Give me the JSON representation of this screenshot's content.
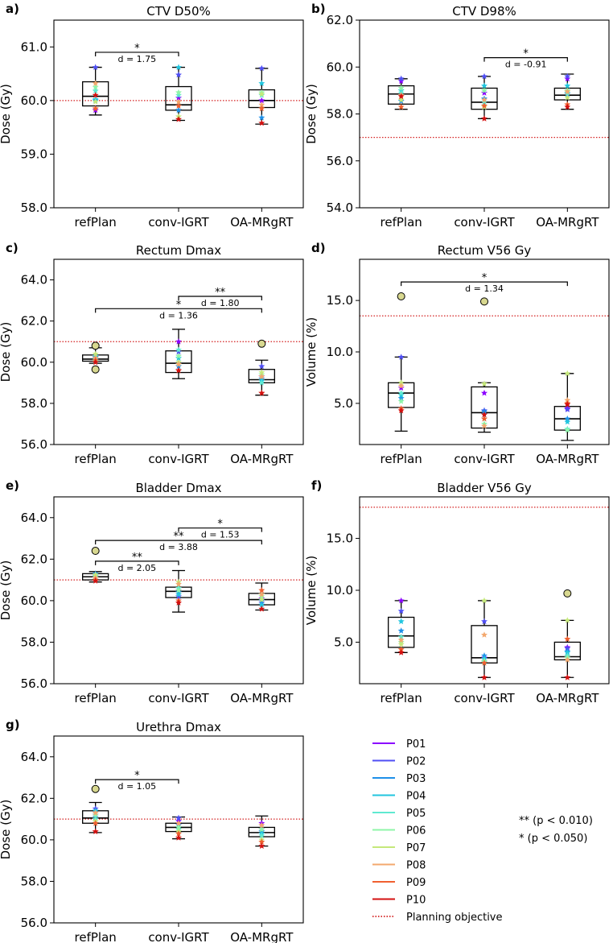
{
  "chart_data": [
    {
      "panel": "a)",
      "type": "box",
      "title": "CTV D50%",
      "ylabel": "Dose (Gy)",
      "ylim": [
        58.0,
        61.5
      ],
      "yticks": [
        58.0,
        59.0,
        60.0,
        61.0
      ],
      "ytick_labels": [
        "58.0",
        "59.0",
        "60.0",
        "61.0"
      ],
      "categories": [
        "refPlan",
        "conv-IGRT",
        "OA-MRgRT"
      ],
      "objective": 60.0,
      "boxes": [
        {
          "whislo": 59.73,
          "q1": 59.9,
          "med": 60.08,
          "q3": 60.35,
          "whishi": 60.62,
          "fliers": [],
          "points": [
            59.82,
            60.62,
            60.0,
            60.02,
            60.18,
            60.25,
            59.98,
            60.32,
            59.85,
            60.1
          ]
        },
        {
          "whislo": 59.63,
          "q1": 59.82,
          "med": 59.92,
          "q3": 60.26,
          "whishi": 60.62,
          "fliers": [],
          "points": [
            60.05,
            60.48,
            59.82,
            60.62,
            60.1,
            60.15,
            59.7,
            59.98,
            59.9,
            59.65
          ]
        },
        {
          "whislo": 59.56,
          "q1": 59.87,
          "med": 60.0,
          "q3": 60.2,
          "whishi": 60.6,
          "fliers": [],
          "points": [
            60.0,
            60.6,
            59.68,
            60.32,
            60.1,
            60.15,
            60.12,
            59.92,
            59.85,
            59.58
          ]
        }
      ],
      "sig": [
        {
          "from": 0,
          "to": 1,
          "level": 60.9,
          "stars": "*",
          "d": "d = 1.75"
        }
      ]
    },
    {
      "panel": "b)",
      "type": "box",
      "title": "CTV D98%",
      "ylabel": "Dose (Gy)",
      "ylim": [
        54.0,
        62.0
      ],
      "yticks": [
        54.0,
        56.0,
        58.0,
        60.0,
        62.0
      ],
      "ytick_labels": [
        "54.0",
        "56.0",
        "58.0",
        "60.0",
        "62.0"
      ],
      "categories": [
        "refPlan",
        "conv-IGRT",
        "OA-MRgRT"
      ],
      "objective": 57.0,
      "boxes": [
        {
          "whislo": 58.2,
          "q1": 58.42,
          "med": 58.85,
          "q3": 59.2,
          "whishi": 59.5,
          "fliers": [],
          "points": [
            59.4,
            59.5,
            58.55,
            59.0,
            58.9,
            59.1,
            58.6,
            58.8,
            58.3,
            58.75
          ]
        },
        {
          "whislo": 57.8,
          "q1": 58.2,
          "med": 58.5,
          "q3": 59.1,
          "whishi": 59.6,
          "fliers": [],
          "points": [
            58.9,
            59.6,
            58.65,
            59.2,
            58.5,
            59.0,
            58.3,
            58.6,
            58.35,
            57.8
          ]
        },
        {
          "whislo": 58.2,
          "q1": 58.6,
          "med": 58.8,
          "q3": 59.1,
          "whishi": 59.7,
          "fliers": [],
          "points": [
            59.5,
            59.6,
            58.85,
            59.2,
            58.9,
            59.0,
            58.7,
            58.95,
            58.4,
            58.3
          ]
        }
      ],
      "sig": [
        {
          "from": 1,
          "to": 2,
          "level": 60.4,
          "stars": "*",
          "d": "d = -0.91"
        }
      ]
    },
    {
      "panel": "c)",
      "type": "box",
      "title": "Rectum Dmax",
      "ylabel": "Dose (Gy)",
      "ylim": [
        56.0,
        65.0
      ],
      "yticks": [
        56.0,
        58.0,
        60.0,
        62.0,
        64.0
      ],
      "ytick_labels": [
        "56.0",
        "58.0",
        "60.0",
        "62.0",
        "64.0"
      ],
      "categories": [
        "refPlan",
        "conv-IGRT",
        "OA-MRgRT"
      ],
      "objective": 61.0,
      "boxes": [
        {
          "whislo": 59.95,
          "q1": 60.05,
          "med": 60.15,
          "q3": 60.35,
          "whishi": 60.7,
          "fliers": [
            60.8,
            59.65
          ],
          "points": [
            60.2,
            60.1,
            60.25,
            60.3,
            60.15,
            60.05,
            60.4,
            60.2,
            60.1,
            60.0
          ]
        },
        {
          "whislo": 59.2,
          "q1": 59.5,
          "med": 59.95,
          "q3": 60.55,
          "whishi": 61.6,
          "fliers": [],
          "points": [
            61.0,
            60.5,
            59.8,
            60.2,
            60.6,
            60.3,
            60.0,
            59.9,
            59.6,
            59.6
          ]
        },
        {
          "whislo": 58.4,
          "q1": 59.0,
          "med": 59.15,
          "q3": 59.65,
          "whishi": 60.1,
          "fliers": [
            60.9
          ],
          "points": [
            59.3,
            59.8,
            59.2,
            59.1,
            59.0,
            59.4,
            59.5,
            59.3,
            58.5,
            58.5
          ]
        }
      ],
      "sig": [
        {
          "from": 1,
          "to": 2,
          "level": 63.2,
          "stars": "**",
          "d": "d = 1.80"
        },
        {
          "from": 0,
          "to": 2,
          "level": 62.6,
          "stars": "*",
          "d": "d = 1.36"
        }
      ]
    },
    {
      "panel": "d)",
      "type": "box",
      "title": "Rectum V56 Gy",
      "ylabel": "Volume (%)",
      "ylim": [
        1.0,
        19.0
      ],
      "yticks": [
        5.0,
        10.0,
        15.0
      ],
      "ytick_labels": [
        "5.0",
        "10.0",
        "15.0"
      ],
      "categories": [
        "refPlan",
        "conv-IGRT",
        "OA-MRgRT"
      ],
      "objective": 13.5,
      "boxes": [
        {
          "whislo": 2.3,
          "q1": 4.6,
          "med": 6.0,
          "q3": 7.0,
          "whishi": 9.5,
          "fliers": [
            15.4
          ],
          "points": [
            6.5,
            9.5,
            5.5,
            5.8,
            6.0,
            5.2,
            7.0,
            6.7,
            4.5,
            4.3
          ]
        },
        {
          "whislo": 2.2,
          "q1": 2.6,
          "med": 4.1,
          "q3": 6.6,
          "whishi": 7.0,
          "fliers": [
            14.9
          ],
          "points": [
            6.0,
            4.3,
            4.2,
            3.9,
            3.5,
            3.0,
            6.9,
            2.8,
            3.5,
            3.9
          ]
        },
        {
          "whislo": 1.4,
          "q1": 2.4,
          "med": 3.5,
          "q3": 4.7,
          "whishi": 7.9,
          "fliers": [],
          "points": [
            4.5,
            4.4,
            3.5,
            3.2,
            2.5,
            2.4,
            7.9,
            5.3,
            5.0,
            4.9
          ]
        }
      ],
      "sig": [
        {
          "from": 0,
          "to": 2,
          "level": 16.8,
          "stars": "*",
          "d": "d = 1.34"
        }
      ]
    },
    {
      "panel": "e)",
      "type": "box",
      "title": "Bladder Dmax",
      "ylabel": "Dose (Gy)",
      "ylim": [
        56.0,
        65.0
      ],
      "yticks": [
        56.0,
        58.0,
        60.0,
        62.0,
        64.0
      ],
      "ytick_labels": [
        "56.0",
        "58.0",
        "60.0",
        "62.0",
        "64.0"
      ],
      "categories": [
        "refPlan",
        "conv-IGRT",
        "OA-MRgRT"
      ],
      "objective": 61.0,
      "boxes": [
        {
          "whislo": 60.9,
          "q1": 61.0,
          "med": 61.15,
          "q3": 61.3,
          "whishi": 61.4,
          "fliers": [
            62.4
          ],
          "points": [
            61.2,
            61.1,
            61.3,
            61.0,
            61.15,
            61.2,
            61.25,
            61.1,
            61.0,
            60.95
          ]
        },
        {
          "whislo": 59.45,
          "q1": 60.15,
          "med": 60.45,
          "q3": 60.65,
          "whishi": 61.45,
          "fliers": [],
          "points": [
            60.5,
            60.2,
            60.4,
            60.3,
            60.6,
            60.5,
            60.9,
            60.8,
            60.0,
            59.9
          ]
        },
        {
          "whislo": 59.55,
          "q1": 59.8,
          "med": 60.05,
          "q3": 60.35,
          "whishi": 60.85,
          "fliers": [],
          "points": [
            60.1,
            59.9,
            60.0,
            59.8,
            60.3,
            60.2,
            60.05,
            60.3,
            60.5,
            59.6
          ]
        }
      ],
      "sig": [
        {
          "from": 1,
          "to": 2,
          "level": 63.5,
          "stars": "*",
          "d": "d = 1.53"
        },
        {
          "from": 0,
          "to": 2,
          "level": 62.9,
          "stars": "**",
          "d": "d = 3.88"
        },
        {
          "from": 0,
          "to": 1,
          "level": 61.9,
          "stars": "**",
          "d": "d = 2.05"
        }
      ]
    },
    {
      "panel": "f)",
      "type": "box",
      "title": "Bladder V56 Gy",
      "ylabel": "Volume (%)",
      "ylim": [
        1.0,
        19.0
      ],
      "yticks": [
        5.0,
        10.0,
        15.0
      ],
      "ytick_labels": [
        "5.0",
        "10.0",
        "15.0"
      ],
      "categories": [
        "refPlan",
        "conv-IGRT",
        "OA-MRgRT"
      ],
      "objective": 18.0,
      "boxes": [
        {
          "whislo": 4.0,
          "q1": 4.5,
          "med": 5.6,
          "q3": 7.4,
          "whishi": 9.0,
          "fliers": [],
          "points": [
            9.0,
            8.0,
            6.1,
            7.0,
            5.5,
            5.0,
            4.8,
            5.2,
            4.3,
            4.0
          ]
        },
        {
          "whislo": 1.6,
          "q1": 3.0,
          "med": 3.5,
          "q3": 6.6,
          "whishi": 9.0,
          "fliers": [],
          "points": [
            3.5,
            7.0,
            3.7,
            3.4,
            3.1,
            3.2,
            9.0,
            5.7,
            3.0,
            1.6
          ]
        },
        {
          "whislo": 1.6,
          "q1": 3.3,
          "med": 3.6,
          "q3": 5.0,
          "whishi": 7.1,
          "fliers": [
            9.7
          ],
          "points": [
            4.5,
            4.4,
            4.1,
            4.0,
            3.7,
            3.5,
            7.1,
            3.3,
            5.3,
            1.6
          ]
        }
      ],
      "sig": []
    },
    {
      "panel": "g)",
      "type": "box",
      "title": "Urethra Dmax",
      "ylabel": "Dose (Gy)",
      "ylim": [
        56.0,
        65.0
      ],
      "yticks": [
        56.0,
        58.0,
        60.0,
        62.0,
        64.0
      ],
      "ytick_labels": [
        "56.0",
        "58.0",
        "60.0",
        "62.0",
        "64.0"
      ],
      "categories": [
        "refPlan",
        "conv-IGRT",
        "OA-MRgRT"
      ],
      "objective": 61.0,
      "boxes": [
        {
          "whislo": 60.35,
          "q1": 60.8,
          "med": 61.05,
          "q3": 61.4,
          "whishi": 61.8,
          "fliers": [
            62.45
          ],
          "points": [
            61.2,
            61.5,
            61.1,
            61.4,
            61.0,
            61.2,
            60.9,
            61.3,
            60.8,
            60.4
          ]
        },
        {
          "whislo": 60.05,
          "q1": 60.4,
          "med": 60.6,
          "q3": 60.8,
          "whishi": 61.1,
          "fliers": [],
          "points": [
            60.9,
            61.05,
            60.7,
            60.6,
            60.5,
            60.6,
            60.4,
            60.8,
            60.3,
            60.1
          ]
        },
        {
          "whislo": 59.7,
          "q1": 60.15,
          "med": 60.35,
          "q3": 60.6,
          "whishi": 61.15,
          "fliers": [],
          "points": [
            60.8,
            60.5,
            60.4,
            60.3,
            60.2,
            60.5,
            60.0,
            60.7,
            59.9,
            59.7
          ]
        }
      ],
      "sig": [
        {
          "from": 0,
          "to": 1,
          "level": 62.9,
          "stars": "*",
          "d": "d = 1.05"
        }
      ]
    }
  ],
  "legend": {
    "patients": [
      {
        "label": "P01",
        "color": "#8b00ff"
      },
      {
        "label": "P02",
        "color": "#4f4ef4"
      },
      {
        "label": "P03",
        "color": "#1e90e8"
      },
      {
        "label": "P04",
        "color": "#22c6df"
      },
      {
        "label": "P05",
        "color": "#5fe9d1"
      },
      {
        "label": "P06",
        "color": "#8ff5a8"
      },
      {
        "label": "P07",
        "color": "#c5e87a"
      },
      {
        "label": "P08",
        "color": "#f3a86e"
      },
      {
        "label": "P09",
        "color": "#f06030"
      },
      {
        "label": "P10",
        "color": "#d41010"
      }
    ],
    "objective_label": "Planning objective",
    "objective_color": "#d42020",
    "sig_notes": [
      "** (p < 0.010)",
      "* (p < 0.050)"
    ]
  },
  "flier_color": "#d8d890"
}
